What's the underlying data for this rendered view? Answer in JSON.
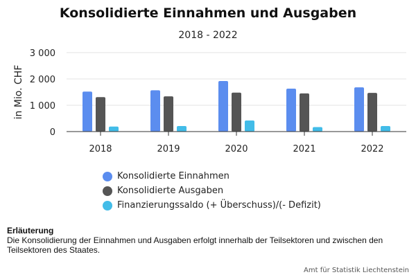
{
  "header": {
    "title": "Konsolidierte Einnahmen und Ausgaben",
    "subtitle": "2018 - 2022"
  },
  "chart_data": {
    "type": "bar",
    "categories": [
      "2018",
      "2019",
      "2020",
      "2021",
      "2022"
    ],
    "series": [
      {
        "name": "Konsolidierte Einnahmen",
        "color": "#5b8def",
        "values": [
          1520,
          1570,
          1920,
          1630,
          1680
        ]
      },
      {
        "name": "Konsolidierte Ausgaben",
        "color": "#555555",
        "values": [
          1310,
          1340,
          1480,
          1450,
          1470
        ]
      },
      {
        "name": "Finanzierungssaldo (+ Überschuss)/(- Defizit)",
        "color": "#42bce8",
        "values": [
          190,
          210,
          420,
          170,
          210
        ]
      }
    ],
    "ylabel": "in Mio. CHF",
    "yticks": [
      "0",
      "1 000",
      "2 000",
      "3 000"
    ],
    "ylim": [
      0,
      3000
    ],
    "grid": true,
    "legend_position": "bottom-left"
  },
  "note": {
    "heading": "Erläuterung",
    "text": "Die Konsolidierung der Einnahmen und Ausgaben erfolgt innerhalb der Teilsektoren und zwischen den Teilsektoren des Staates."
  },
  "source": "Amt für Statistik Liechtenstein"
}
